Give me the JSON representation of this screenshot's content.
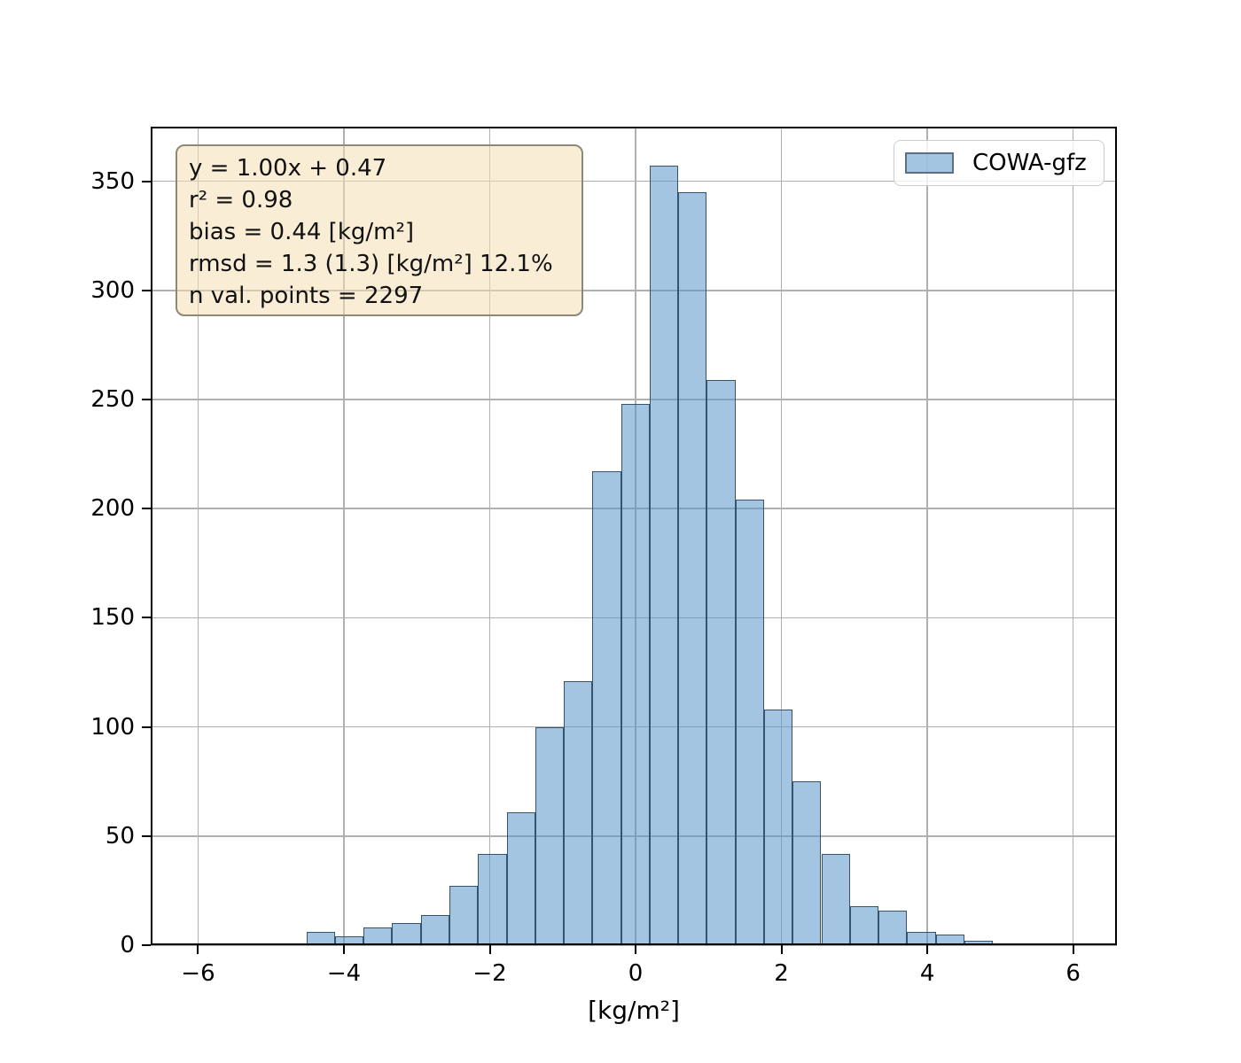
{
  "chart_data": {
    "type": "bar",
    "chart_kind": "histogram",
    "title": "",
    "xlabel": "[kg/m²]",
    "ylabel": "",
    "xlim": [
      -6.65,
      6.6
    ],
    "ylim": [
      0,
      375
    ],
    "grid": true,
    "legend": {
      "label": "COWA-gfz",
      "position": "upper right"
    },
    "stats_box": {
      "lines": [
        "y = 1.00x + 0.47",
        "r² = 0.98",
        "bias = 0.44 [kg/m²]",
        "rmsd = 1.3 (1.3) [kg/m²] 12.1%",
        "n val. points = 2297"
      ]
    },
    "x_ticks": [
      {
        "value": -6,
        "label": "−6"
      },
      {
        "value": -4,
        "label": "−4"
      },
      {
        "value": -2,
        "label": "−2"
      },
      {
        "value": 0,
        "label": "0"
      },
      {
        "value": 2,
        "label": "2"
      },
      {
        "value": 4,
        "label": "4"
      },
      {
        "value": 6,
        "label": "6"
      }
    ],
    "y_ticks": [
      {
        "value": 0,
        "label": "0"
      },
      {
        "value": 50,
        "label": "50"
      },
      {
        "value": 100,
        "label": "100"
      },
      {
        "value": 150,
        "label": "150"
      },
      {
        "value": 200,
        "label": "200"
      },
      {
        "value": 250,
        "label": "250"
      },
      {
        "value": 300,
        "label": "300"
      },
      {
        "value": 350,
        "label": "350"
      }
    ],
    "bin_edges": [
      -5.3,
      -4.908,
      -4.515,
      -4.123,
      -3.731,
      -3.338,
      -2.946,
      -2.554,
      -2.162,
      -1.769,
      -1.377,
      -0.985,
      -0.592,
      -0.2,
      0.192,
      0.585,
      0.977,
      1.369,
      1.762,
      2.154,
      2.546,
      2.938,
      3.331,
      3.723,
      4.115,
      4.508,
      4.9
    ],
    "counts": [
      1,
      1,
      6,
      4,
      8,
      10,
      14,
      27,
      42,
      61,
      100,
      121,
      217,
      248,
      357,
      345,
      259,
      204,
      108,
      75,
      42,
      18,
      16,
      6,
      5,
      2
    ],
    "n_total": 2297,
    "colors": {
      "bar_fill": "rgba(90,150,200,0.55)",
      "bar_edge": "#35536e",
      "grid": "#b0b0b0",
      "axis": "#000000",
      "stats_box_bg": "rgba(245,222,179,0.55)",
      "stats_box_border": "#8e887a",
      "legend_bg": "rgba(255,255,255,0.8)",
      "legend_border": "#cccccc",
      "text": "#000000"
    }
  }
}
